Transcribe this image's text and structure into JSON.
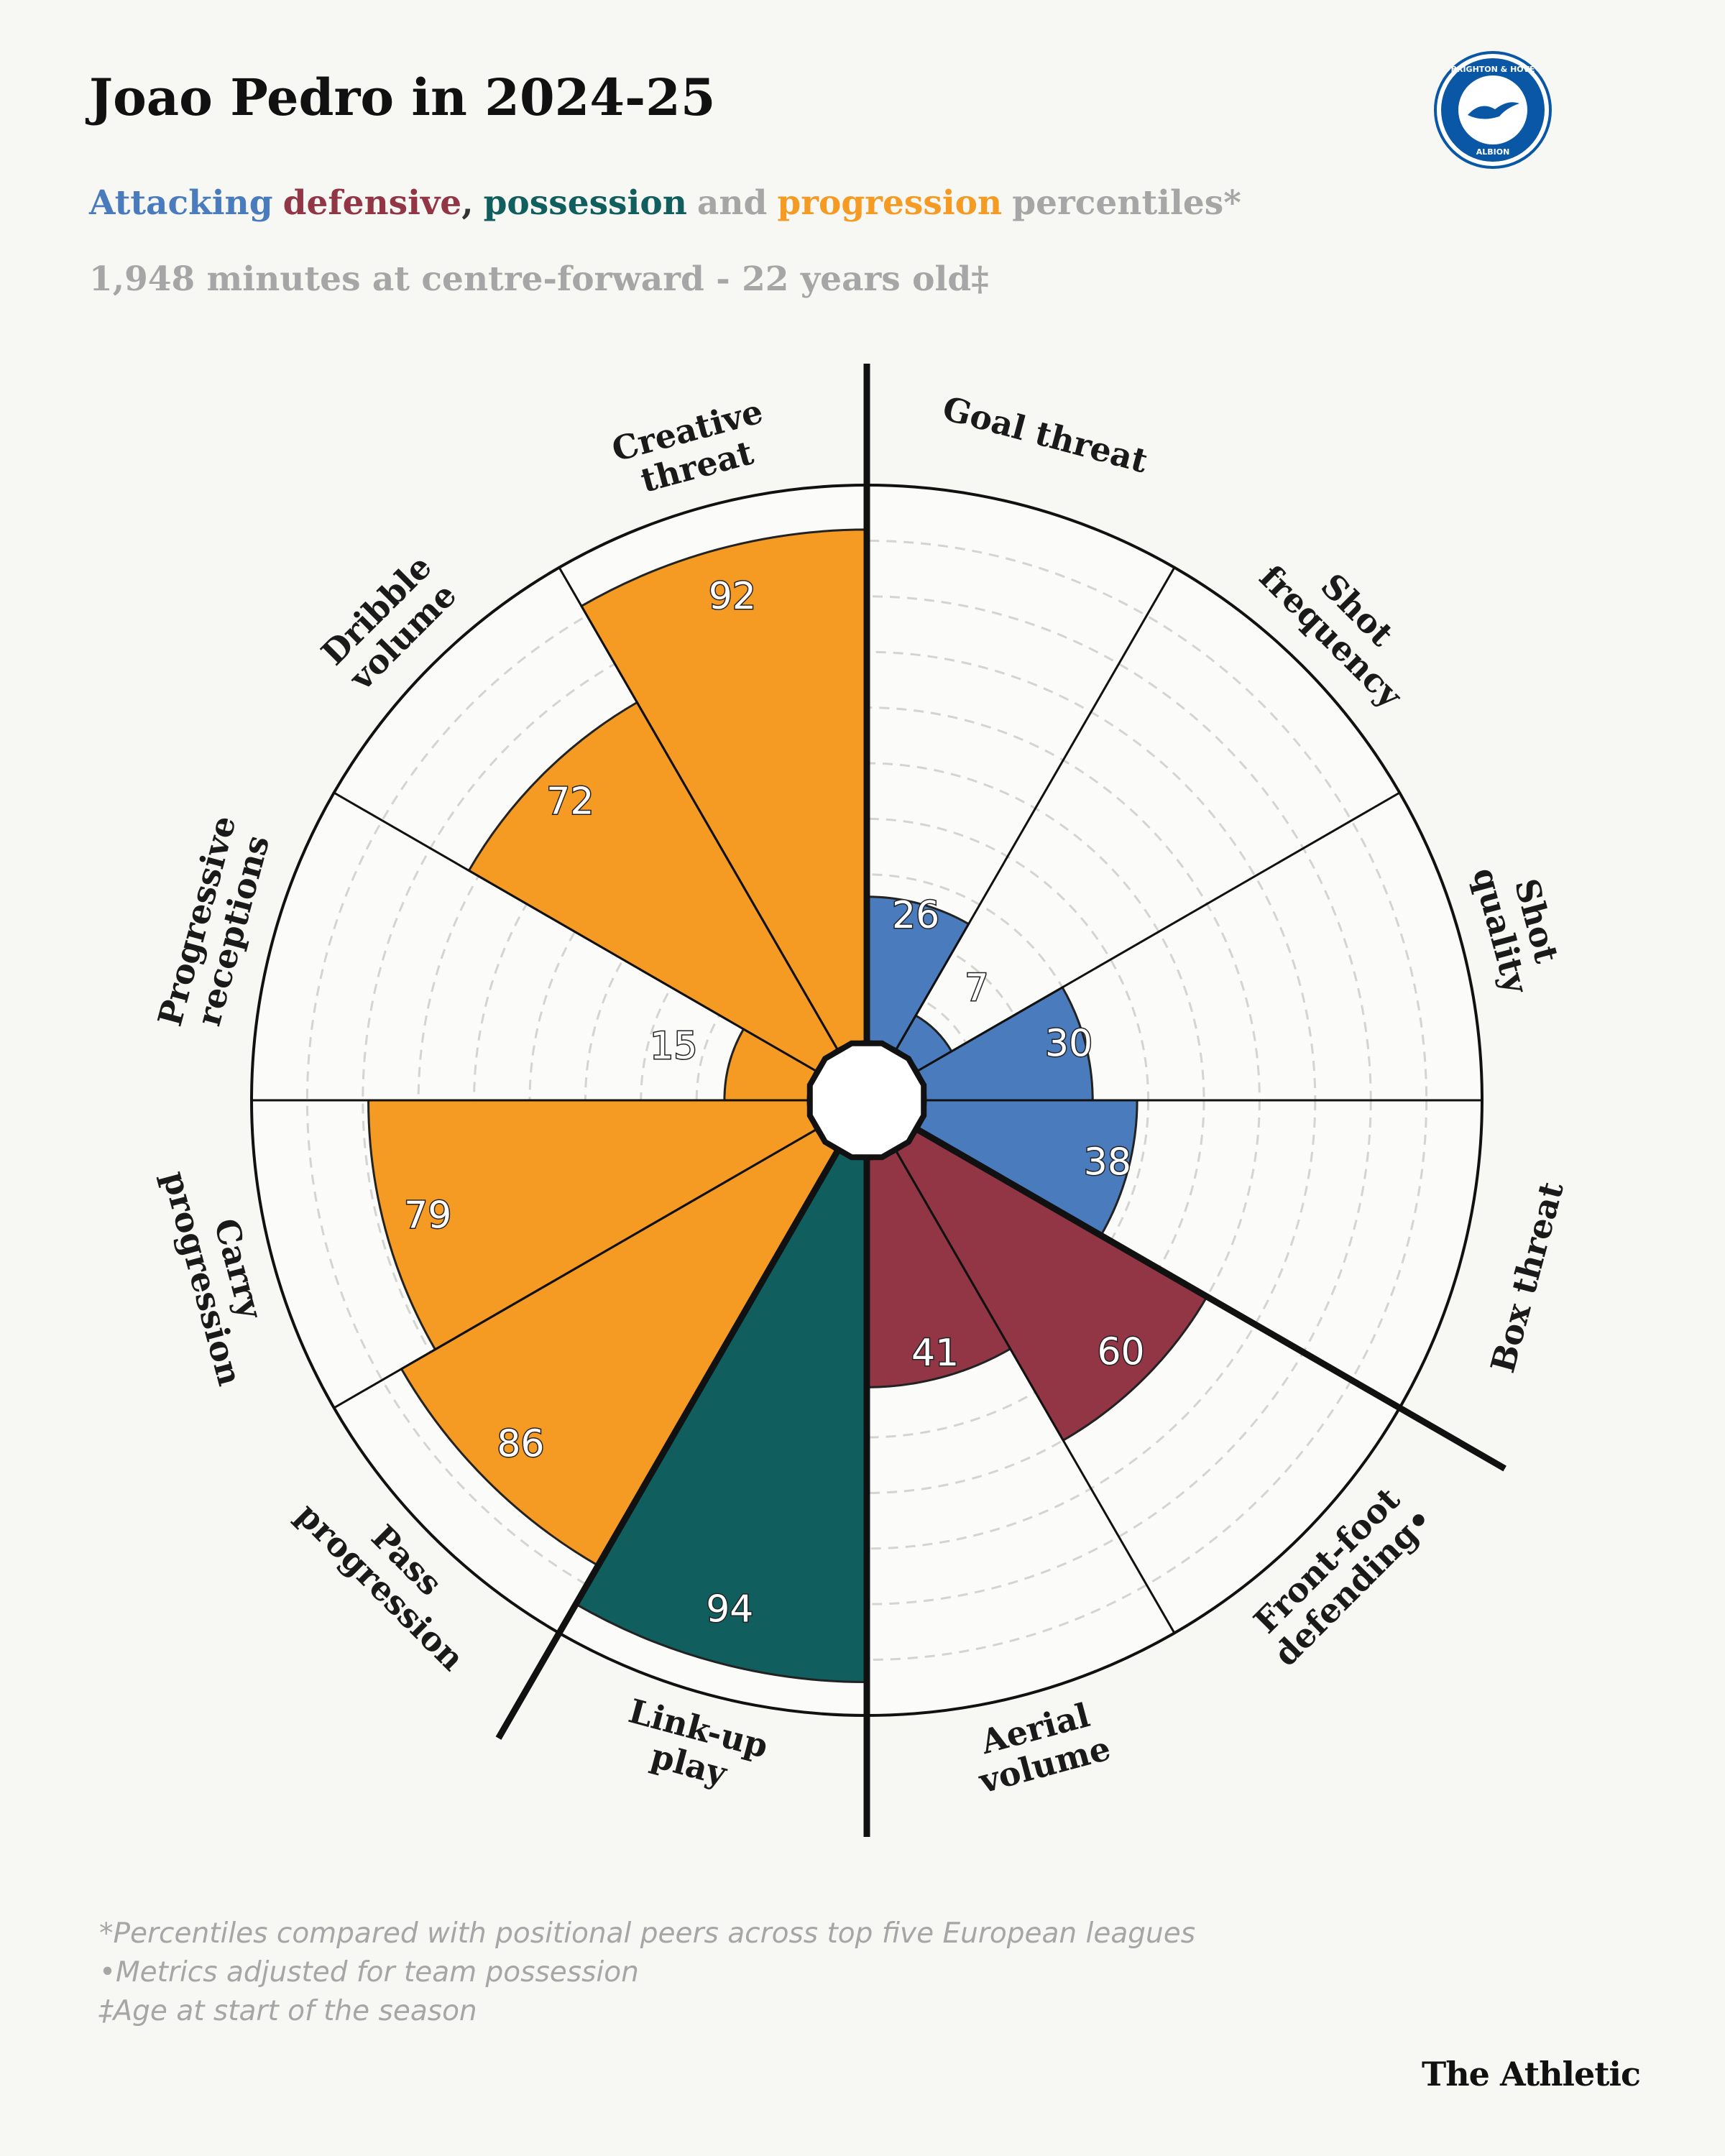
{
  "chart_data": {
    "type": "pizza",
    "title": "Joao Pedro in 2024-25",
    "subtitle_parts": [
      {
        "text": "Attacking",
        "color": "#4a7bbd"
      },
      {
        "text": "defensive",
        "color": "#923646"
      },
      {
        "text": ",",
        "color": "#333333"
      },
      {
        "text": "possession",
        "color": "#115e5e"
      },
      {
        "text": "and",
        "color": "#a6a6a6"
      },
      {
        "text": "progression",
        "color": "#f59a23"
      },
      {
        "text": "percentiles*",
        "color": "#a6a6a6"
      }
    ],
    "subtitle2": "1,948 minutes at centre-forward - 22 years old‡",
    "categories": [
      [
        "Goal threat"
      ],
      [
        "Shot",
        "frequency"
      ],
      [
        "Shot",
        "quality"
      ],
      [
        "Box threat"
      ],
      [
        "Front-foot",
        "defending•"
      ],
      [
        "Aerial",
        "volume"
      ],
      [
        "Link-up",
        "play"
      ],
      [
        "Pass",
        "progression"
      ],
      [
        "Carry",
        "progression"
      ],
      [
        "Progressive",
        "receptions"
      ],
      [
        "Dribble",
        "volume"
      ],
      [
        "Creative",
        "threat"
      ]
    ],
    "values": [
      26,
      7,
      30,
      38,
      60,
      41,
      94,
      86,
      79,
      15,
      72,
      92
    ],
    "colors": [
      "#4a7bbd",
      "#4a7bbd",
      "#4a7bbd",
      "#4a7bbd",
      "#923646",
      "#923646",
      "#115e5e",
      "#f59a23",
      "#f59a23",
      "#f59a23",
      "#f59a23",
      "#f59a23"
    ],
    "rlim": [
      0,
      100
    ],
    "rticks": [
      10,
      20,
      30,
      40,
      50,
      60,
      70,
      80,
      90
    ],
    "footnotes": [
      "*Percentiles compared with positional peers across top five European leagues",
      "•Metrics adjusted for team possession",
      "‡Age at start of the season"
    ]
  },
  "logo": {
    "top": "BRIGHTON & HOVE",
    "bottom": "ALBION"
  },
  "brand": "The Athletic"
}
